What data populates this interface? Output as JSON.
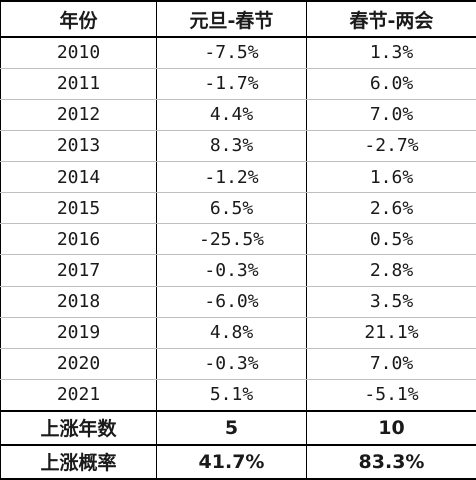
{
  "headers": [
    "年份",
    "元旦-春节",
    "春节-两会"
  ],
  "rows": [
    {
      "year": "2010",
      "a": "-7.5%",
      "b": "1.3%"
    },
    {
      "year": "2011",
      "a": "-1.7%",
      "b": "6.0%"
    },
    {
      "year": "2012",
      "a": "4.4%",
      "b": "7.0%"
    },
    {
      "year": "2013",
      "a": "8.3%",
      "b": "-2.7%"
    },
    {
      "year": "2014",
      "a": "-1.2%",
      "b": "1.6%"
    },
    {
      "year": "2015",
      "a": "6.5%",
      "b": "2.6%"
    },
    {
      "year": "2016",
      "a": "-25.5%",
      "b": "0.5%"
    },
    {
      "year": "2017",
      "a": "-0.3%",
      "b": "2.8%"
    },
    {
      "year": "2018",
      "a": "-6.0%",
      "b": "3.5%"
    },
    {
      "year": "2019",
      "a": "4.8%",
      "b": "21.1%"
    },
    {
      "year": "2020",
      "a": "-0.3%",
      "b": "7.0%"
    },
    {
      "year": "2021",
      "a": "5.1%",
      "b": "-5.1%"
    }
  ],
  "summary": [
    {
      "label": "上涨年数",
      "a": "5",
      "b": "10"
    },
    {
      "label": "上涨概率",
      "a": "41.7%",
      "b": "83.3%"
    }
  ]
}
